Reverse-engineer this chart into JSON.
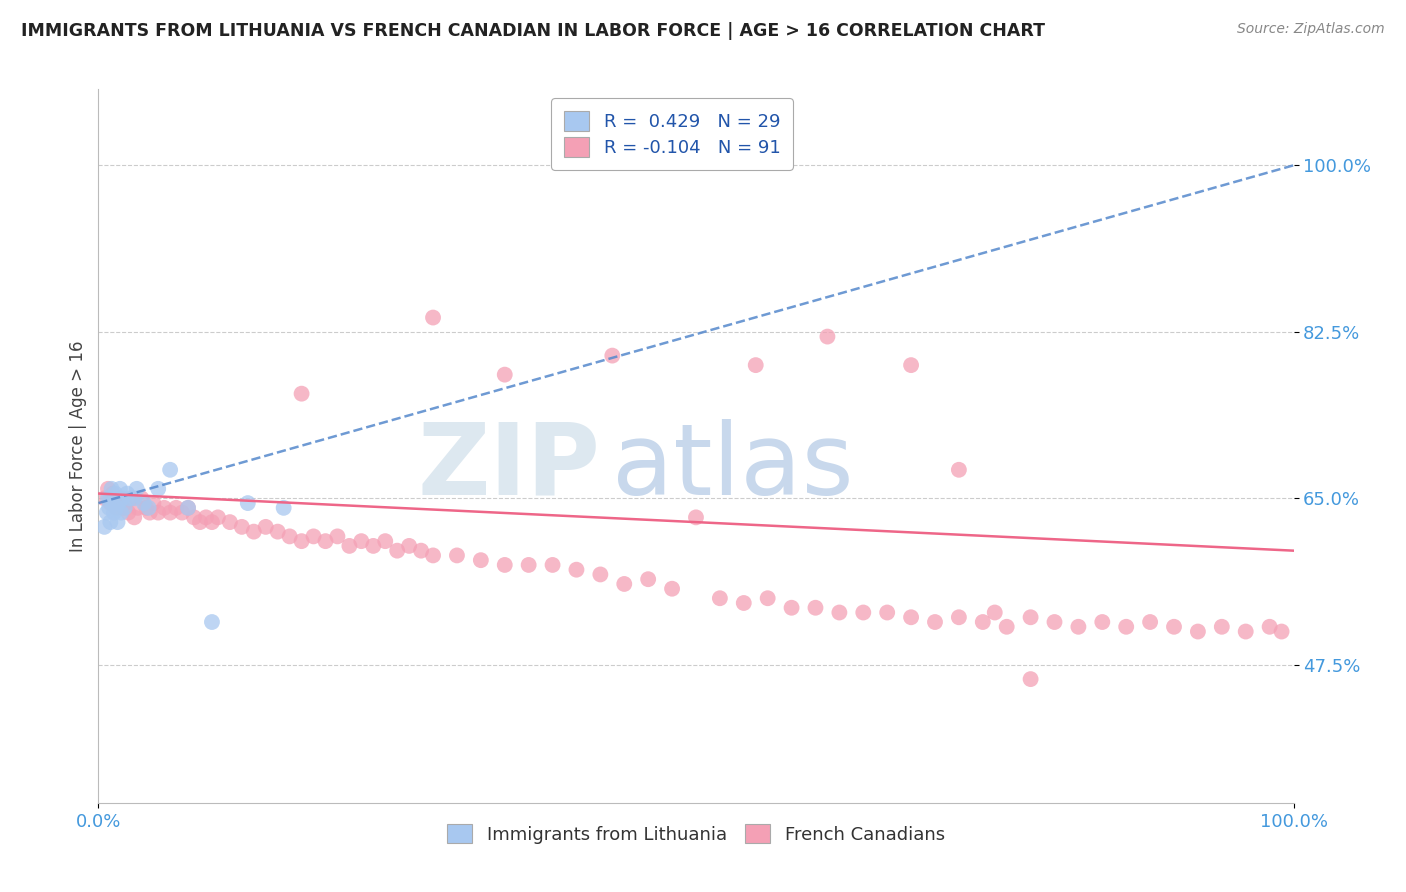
{
  "title": "IMMIGRANTS FROM LITHUANIA VS FRENCH CANADIAN IN LABOR FORCE | AGE > 16 CORRELATION CHART",
  "source": "Source: ZipAtlas.com",
  "ylabel": "In Labor Force | Age > 16",
  "legend_blue_label": "Immigrants from Lithuania",
  "legend_pink_label": "French Canadians",
  "R_blue": 0.429,
  "N_blue": 29,
  "R_pink": -0.104,
  "N_pink": 91,
  "blue_color": "#a8c8f0",
  "pink_color": "#f4a0b5",
  "blue_line_color": "#5588cc",
  "pink_line_color": "#ee6688",
  "background_color": "#ffffff",
  "xlim": [
    0.0,
    1.0
  ],
  "ylim": [
    0.33,
    1.08
  ],
  "ytick_vals": [
    0.475,
    0.65,
    0.825,
    1.0
  ],
  "ytick_labels": [
    "47.5%",
    "65.0%",
    "82.5%",
    "100.0%"
  ],
  "xtick_vals": [
    0.0,
    1.0
  ],
  "xtick_labels": [
    "0.0%",
    "100.0%"
  ],
  "blue_trend_start": 0.645,
  "blue_trend_end": 1.0,
  "pink_trend_start": 0.655,
  "pink_trend_end": 0.595,
  "blue_x": [
    0.005,
    0.007,
    0.008,
    0.009,
    0.01,
    0.01,
    0.011,
    0.012,
    0.013,
    0.014,
    0.015,
    0.016,
    0.017,
    0.018,
    0.019,
    0.02,
    0.022,
    0.024,
    0.026,
    0.03,
    0.032,
    0.038,
    0.042,
    0.05,
    0.06,
    0.075,
    0.095,
    0.125,
    0.155
  ],
  "blue_y": [
    0.62,
    0.635,
    0.65,
    0.64,
    0.625,
    0.65,
    0.66,
    0.645,
    0.635,
    0.655,
    0.64,
    0.625,
    0.645,
    0.66,
    0.635,
    0.65,
    0.64,
    0.655,
    0.65,
    0.65,
    0.66,
    0.645,
    0.64,
    0.66,
    0.68,
    0.64,
    0.52,
    0.645,
    0.64
  ],
  "pink_x": [
    0.005,
    0.008,
    0.01,
    0.012,
    0.015,
    0.018,
    0.02,
    0.022,
    0.025,
    0.028,
    0.03,
    0.033,
    0.036,
    0.04,
    0.043,
    0.046,
    0.05,
    0.055,
    0.06,
    0.065,
    0.07,
    0.075,
    0.08,
    0.085,
    0.09,
    0.095,
    0.1,
    0.11,
    0.12,
    0.13,
    0.14,
    0.15,
    0.16,
    0.17,
    0.18,
    0.19,
    0.2,
    0.21,
    0.22,
    0.23,
    0.24,
    0.25,
    0.26,
    0.27,
    0.28,
    0.3,
    0.32,
    0.34,
    0.36,
    0.38,
    0.4,
    0.42,
    0.44,
    0.46,
    0.48,
    0.5,
    0.52,
    0.54,
    0.56,
    0.58,
    0.6,
    0.62,
    0.64,
    0.66,
    0.68,
    0.7,
    0.72,
    0.74,
    0.76,
    0.78,
    0.8,
    0.82,
    0.84,
    0.86,
    0.88,
    0.9,
    0.92,
    0.94,
    0.96,
    0.98,
    0.99,
    0.17,
    0.28,
    0.34,
    0.43,
    0.55,
    0.61,
    0.68,
    0.72,
    0.75,
    0.78
  ],
  "pink_y": [
    0.65,
    0.66,
    0.645,
    0.655,
    0.64,
    0.65,
    0.64,
    0.645,
    0.635,
    0.65,
    0.63,
    0.64,
    0.65,
    0.64,
    0.635,
    0.645,
    0.635,
    0.64,
    0.635,
    0.64,
    0.635,
    0.64,
    0.63,
    0.625,
    0.63,
    0.625,
    0.63,
    0.625,
    0.62,
    0.615,
    0.62,
    0.615,
    0.61,
    0.605,
    0.61,
    0.605,
    0.61,
    0.6,
    0.605,
    0.6,
    0.605,
    0.595,
    0.6,
    0.595,
    0.59,
    0.59,
    0.585,
    0.58,
    0.58,
    0.58,
    0.575,
    0.57,
    0.56,
    0.565,
    0.555,
    0.63,
    0.545,
    0.54,
    0.545,
    0.535,
    0.535,
    0.53,
    0.53,
    0.53,
    0.525,
    0.52,
    0.525,
    0.52,
    0.515,
    0.525,
    0.52,
    0.515,
    0.52,
    0.515,
    0.52,
    0.515,
    0.51,
    0.515,
    0.51,
    0.515,
    0.51,
    0.76,
    0.84,
    0.78,
    0.8,
    0.79,
    0.82,
    0.79,
    0.68,
    0.53,
    0.46
  ]
}
